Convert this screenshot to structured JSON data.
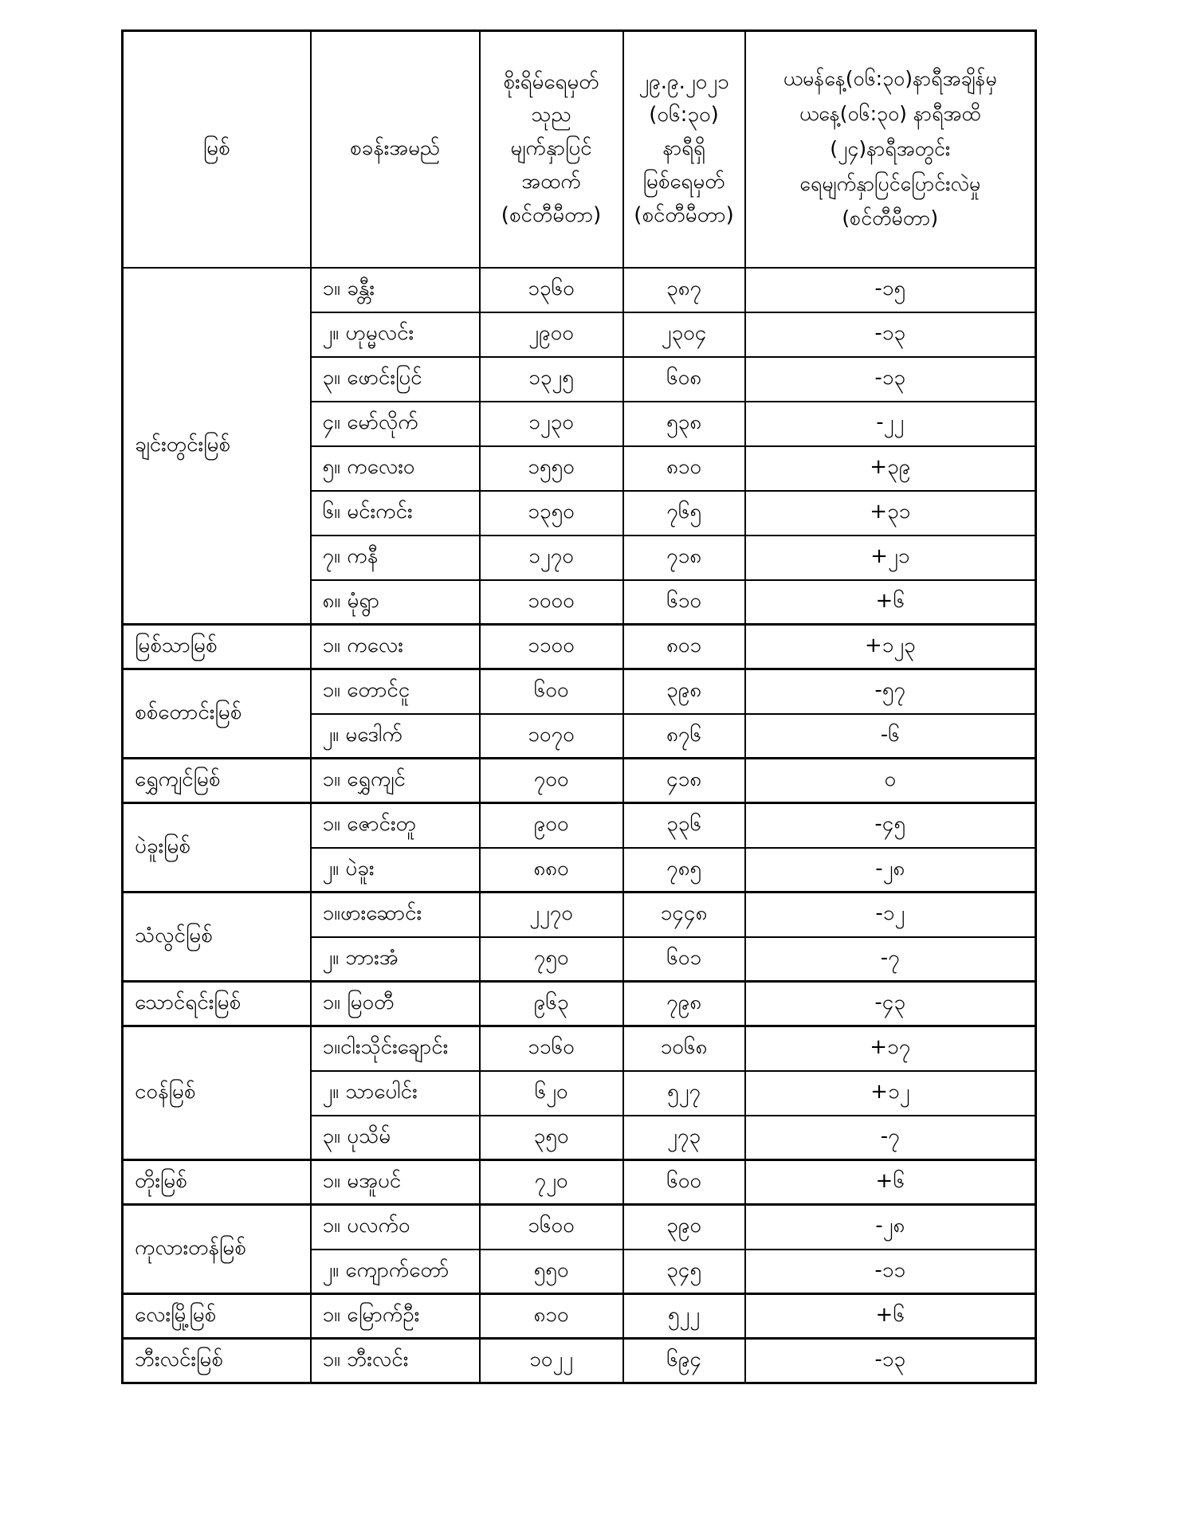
{
  "table": {
    "header": {
      "river": "မြစ်",
      "station": "စခန်းအမည်",
      "danger_lines": [
        "စိုးရိမ်ရေမှတ်",
        "သုည",
        "မျက်နှာပြင်",
        "အထက်",
        "(စင်တီမီတာ)"
      ],
      "level_lines": [
        "၂၉.၉.၂၀၂၁",
        "(၀၆:၃၀)",
        "နာရီရှိ",
        "မြစ်ရေမှတ်",
        "(စင်တီမီတာ)"
      ],
      "change_lines": [
        "ယမန်နေ့(၀၆:၃၀)နာရီအချိန်မှ",
        "ယနေ့(၀၆:၃၀) နာရီအထိ",
        "(၂၄)နာရီအတွင်း",
        "ရေမျက်နှာပြင်ပြောင်းလဲမှု",
        "(စင်တီမီတာ)"
      ]
    },
    "rivers": [
      {
        "name": "ချင်းတွင်းမြစ်",
        "stations": [
          {
            "station": "၁။ ခန္တီး",
            "danger": "၁၃၆၀",
            "level": "၃၈၇",
            "change": "-၁၅"
          },
          {
            "station": "၂။ ဟုမ္မလင်း",
            "danger": "၂၉၀၀",
            "level": "၂၃၀၄",
            "change": "-၁၃"
          },
          {
            "station": "၃။ ဖောင်းပြင်",
            "danger": "၁၃၂၅",
            "level": "၆၀၈",
            "change": "-၁၃"
          },
          {
            "station": "၄။ မော်လိုက်",
            "danger": "၁၂၃၀",
            "level": "၅၃၈",
            "change": "-၂၂"
          },
          {
            "station": "၅။ ကလေးဝ",
            "danger": "၁၅၅၀",
            "level": "၈၁၀",
            "change": "+၃၉"
          },
          {
            "station": "၆။ မင်းကင်း",
            "danger": "၁၃၅၀",
            "level": "၇၆၅",
            "change": "+၃၁"
          },
          {
            "station": "၇။ ကနီ",
            "danger": "၁၂၇၀",
            "level": "၇၁၈",
            "change": "+၂၁"
          },
          {
            "station": "၈။ မုံရွာ",
            "danger": "၁၀၀၀",
            "level": "၆၁၀",
            "change": "+၆"
          }
        ]
      },
      {
        "name": "မြစ်သာမြစ်",
        "stations": [
          {
            "station": "၁။ ကလေး",
            "danger": "၁၁၀၀",
            "level": "၈၀၁",
            "change": "+၁၂၃"
          }
        ]
      },
      {
        "name": "စစ်တောင်းမြစ်",
        "stations": [
          {
            "station": "၁။ တောင်ငူ",
            "danger": "၆၀၀",
            "level": "၃၉၈",
            "change": "-၅၇"
          },
          {
            "station": "၂။ မဒေါက်",
            "danger": "၁၀၇၀",
            "level": "၈၇၆",
            "change": "-၆"
          }
        ]
      },
      {
        "name": "ရွှေကျင်မြစ်",
        "stations": [
          {
            "station": "၁။ ရွှေကျင်",
            "danger": "၇၀၀",
            "level": "၄၁၈",
            "change": "၀"
          }
        ]
      },
      {
        "name": "ပဲခူးမြစ်",
        "stations": [
          {
            "station": "၁။ ဇောင်းတူ",
            "danger": "၉၀၀",
            "level": "၃၃၆",
            "change": "-၄၅"
          },
          {
            "station": "၂။ ပဲခူး",
            "danger": "၈၈၀",
            "level": "၇၈၅",
            "change": "-၂၈"
          }
        ]
      },
      {
        "name": "သံလွင်မြစ်",
        "stations": [
          {
            "station": "၁။ဖားဆောင်း",
            "danger": "၂၂၇၀",
            "level": "၁၄၄၈",
            "change": "-၁၂"
          },
          {
            "station": "၂။ ဘားအံ",
            "danger": "၇၅၀",
            "level": "၆၀၁",
            "change": "-၇"
          }
        ]
      },
      {
        "name": "သောင်ရင်းမြစ်",
        "stations": [
          {
            "station": "၁။ မြဝတီ",
            "danger": "၉၆၃",
            "level": "၇၉၈",
            "change": "-၄၃"
          }
        ]
      },
      {
        "name": "ငဝန်မြစ်",
        "stations": [
          {
            "station": "၁။ငါးသိုင်းချောင်း",
            "danger": "၁၁၆၀",
            "level": "၁၀၆၈",
            "change": "+၁၇"
          },
          {
            "station": "၂။ သာပေါင်း",
            "danger": "၆၂၀",
            "level": "၅၂၇",
            "change": "+၁၂"
          },
          {
            "station": "၃။ ပုသိမ်",
            "danger": "၃၅၀",
            "level": "၂၇၃",
            "change": "-၇"
          }
        ]
      },
      {
        "name": "တိုးမြစ်",
        "stations": [
          {
            "station": "၁။ မအူပင်",
            "danger": "၇၂၀",
            "level": "၆၀၀",
            "change": "+၆"
          }
        ]
      },
      {
        "name": "ကုလားတန်မြစ်",
        "stations": [
          {
            "station": "၁။ ပလက်ဝ",
            "danger": "၁၆၀၀",
            "level": "၃၉၀",
            "change": "-၂၈"
          },
          {
            "station": "၂။ ကျောက်တော်",
            "danger": "၅၅၀",
            "level": "၃၄၅",
            "change": "-၁၁"
          }
        ]
      },
      {
        "name": "လေးမြို့မြစ်",
        "stations": [
          {
            "station": "၁။ မြောက်ဦး",
            "danger": "၈၁၀",
            "level": "၅၂၂",
            "change": "+၆"
          }
        ]
      },
      {
        "name": "ဘီးလင်းမြစ်",
        "stations": [
          {
            "station": "၁။ ဘီးလင်း",
            "danger": "၁၀၂၂",
            "level": "၆၉၄",
            "change": "-၁၃"
          }
        ]
      }
    ]
  }
}
